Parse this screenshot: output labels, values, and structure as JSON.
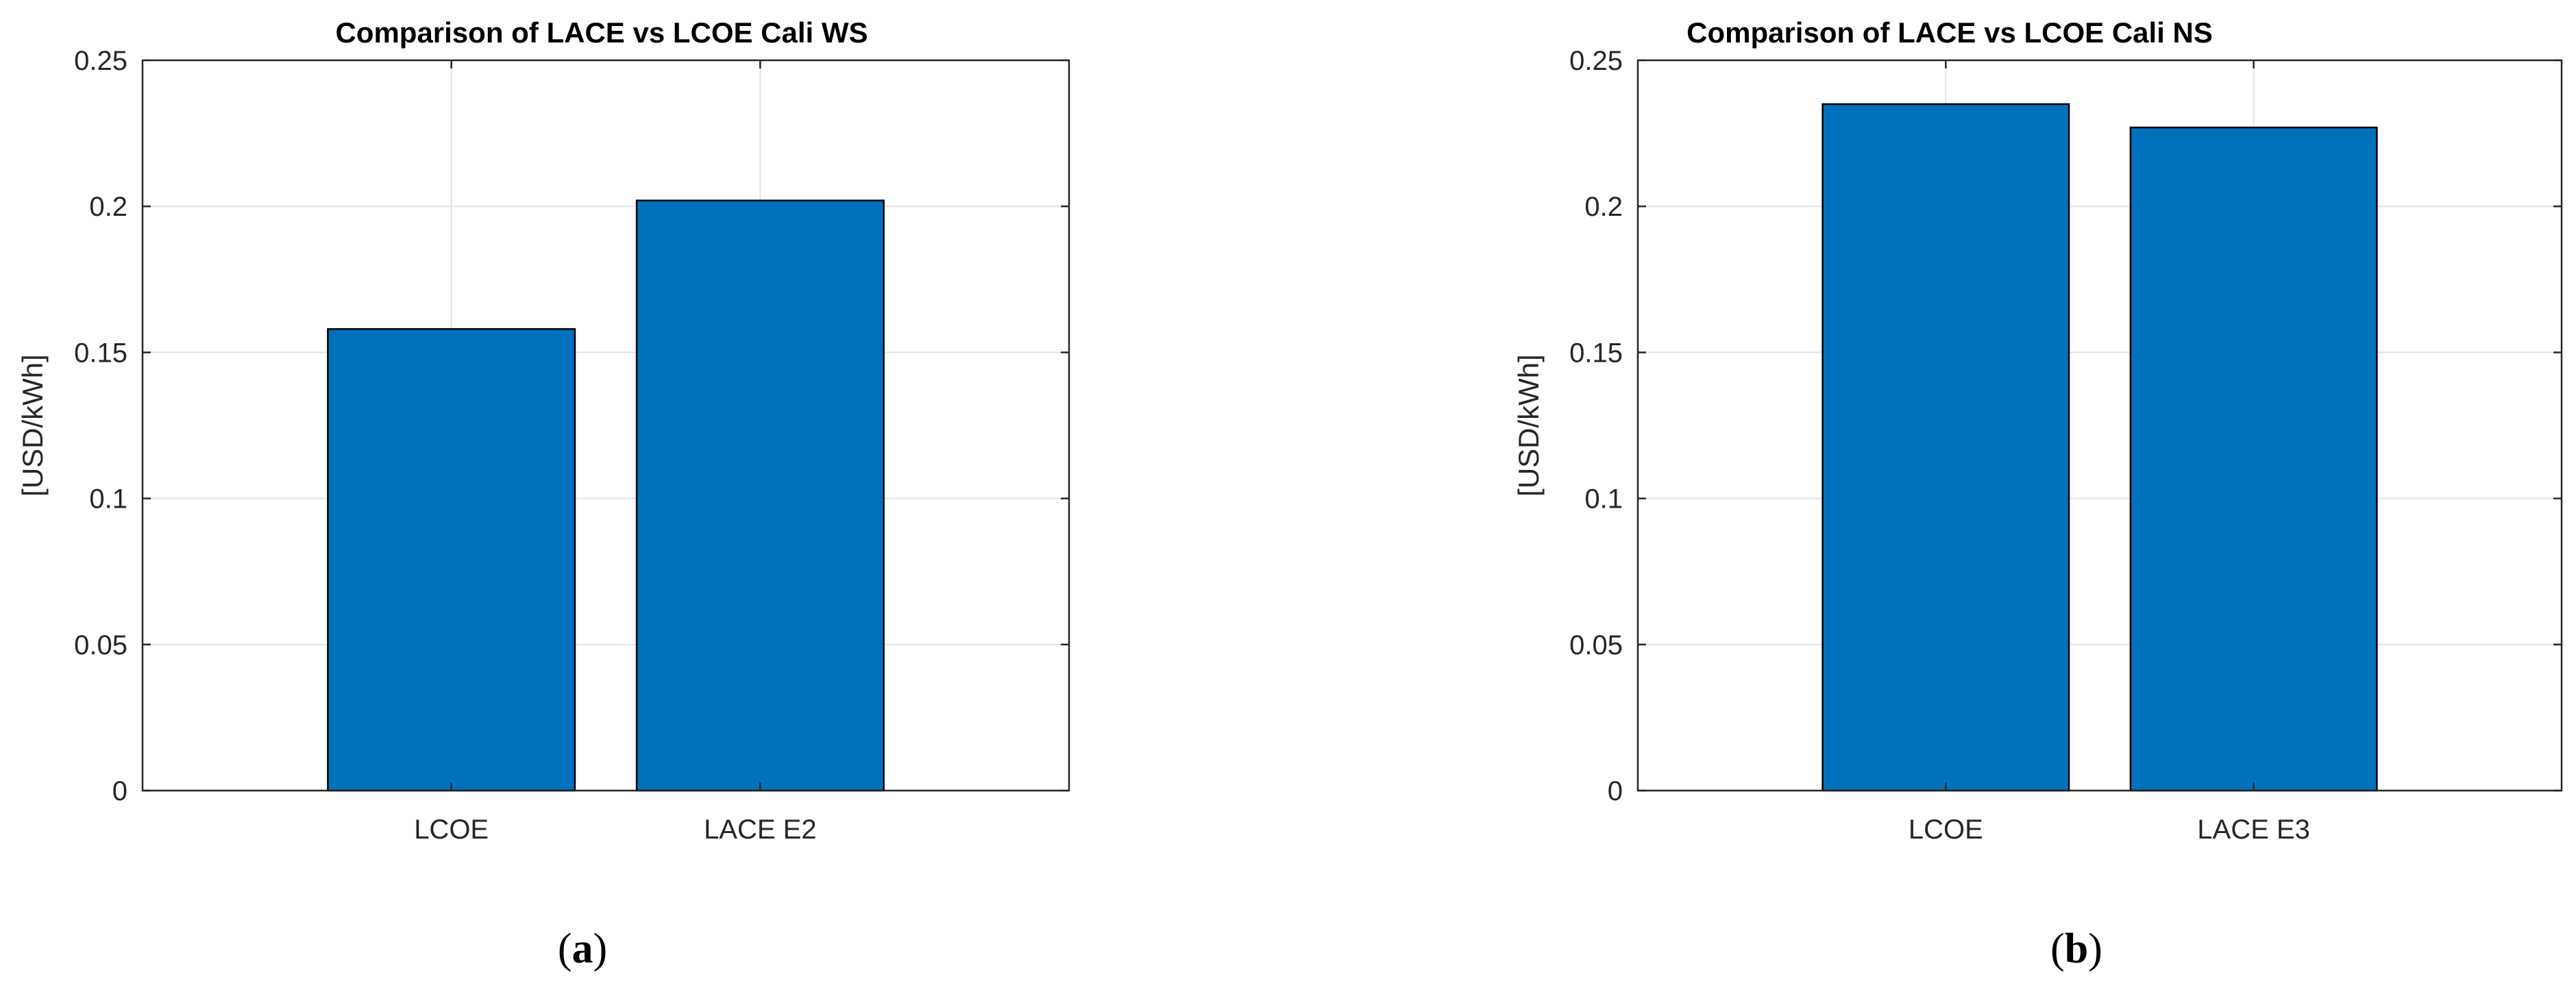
{
  "chart_data": [
    {
      "type": "bar",
      "title": "Comparison of LACE vs LCOE Cali WS",
      "xlabel": "",
      "ylabel": "[USD/kWh]",
      "categories": [
        "LCOE",
        "LACE E2"
      ],
      "values": [
        0.158,
        0.202
      ],
      "ylim": [
        0,
        0.25
      ],
      "yticks": [
        "0",
        "0.05",
        "0.1",
        "0.15",
        "0.2",
        "0.25"
      ],
      "grid": true,
      "panel_label": {
        "open": "(",
        "letter": "a",
        "close": ")"
      }
    },
    {
      "type": "bar",
      "title": "Comparison of LACE vs LCOE Cali NS",
      "xlabel": "",
      "ylabel": "[USD/kWh]",
      "categories": [
        "LCOE",
        "LACE E3"
      ],
      "values": [
        0.235,
        0.227
      ],
      "ylim": [
        0,
        0.25
      ],
      "yticks": [
        "0",
        "0.05",
        "0.1",
        "0.15",
        "0.2",
        "0.25"
      ],
      "grid": true,
      "panel_label": {
        "open": "(",
        "letter": "b",
        "close": ")"
      }
    }
  ],
  "colors": {
    "bar_fill": "#0072bd",
    "bar_edge": "#000000",
    "axis": "#262626",
    "grid": "#e3e3e3"
  }
}
